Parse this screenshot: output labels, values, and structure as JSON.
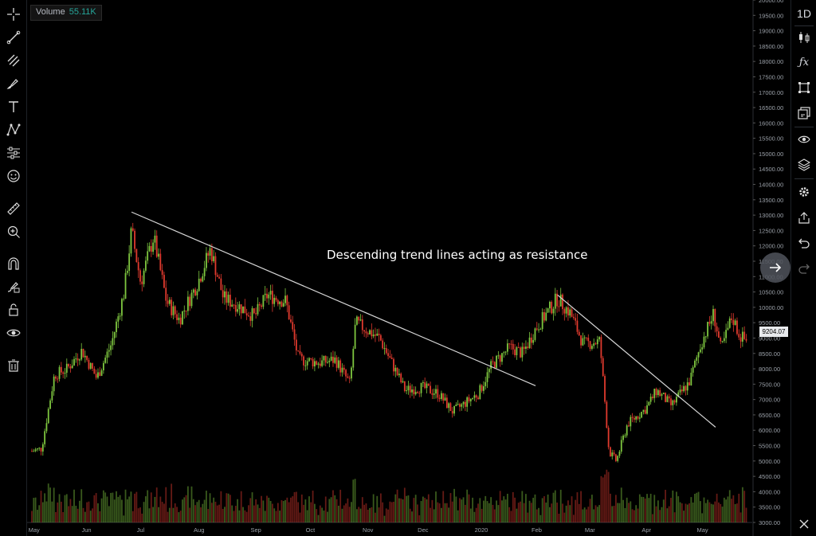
{
  "indicator": {
    "label": "Volume",
    "value": "55.11K"
  },
  "annotation": "Descending trend lines acting as resistance",
  "current_price": "9204.07",
  "right_toolbar": {
    "interval": "1D"
  },
  "left_tools": [
    "crosshair-icon",
    "trendline-icon",
    "pitchfork-icon",
    "brush-icon",
    "text-icon",
    "pattern-icon",
    "prediction-icon",
    "emoji-icon",
    "ruler-icon",
    "zoom-in-icon",
    "magnet-icon",
    "lock-drawing-icon",
    "unlock-icon",
    "eye-icon",
    "trash-icon"
  ],
  "right_tools": [
    "candles-icon",
    "fx-icon",
    "object-tree-icon",
    "watchlist-icon",
    "hide-icon",
    "layers-icon",
    "settings-icon",
    "share-icon",
    "undo-icon",
    "redo-icon"
  ],
  "colors": {
    "up": "#7ec63f",
    "down": "#e03a2e",
    "trendline": "#d6d6d6",
    "background": "#000000"
  },
  "chart_data": {
    "type": "candlestick",
    "title": "",
    "ylim": [
      3000,
      20000
    ],
    "y_ticks": [
      "20000.00",
      "19500.00",
      "19000.00",
      "18500.00",
      "18000.00",
      "17500.00",
      "17000.00",
      "16500.00",
      "16000.00",
      "15500.00",
      "15000.00",
      "14500.00",
      "14000.00",
      "13500.00",
      "13000.00",
      "12500.00",
      "12000.00",
      "11500.00",
      "11000.00",
      "10500.00",
      "10000.00",
      "9500.00",
      "9000.00",
      "8500.00",
      "8000.00",
      "7500.00",
      "7000.00",
      "6500.00",
      "6000.00",
      "5500.00",
      "5000.00",
      "4500.00",
      "4000.00",
      "3500.00",
      "3000.00"
    ],
    "x_ticks": [
      "May",
      "Jun",
      "Jul",
      "Aug",
      "Sep",
      "Oct",
      "Nov",
      "Dec",
      "2020",
      "Feb",
      "Mar",
      "Apr",
      "May"
    ],
    "price_path": [
      [
        "2019-05-01",
        5300
      ],
      [
        "2019-05-08",
        5400
      ],
      [
        "2019-05-15",
        7800
      ],
      [
        "2019-05-22",
        8000
      ],
      [
        "2019-05-30",
        8600
      ],
      [
        "2019-06-07",
        7700
      ],
      [
        "2019-06-15",
        8800
      ],
      [
        "2019-06-22",
        10500
      ],
      [
        "2019-06-26",
        12500
      ],
      [
        "2019-07-01",
        10800
      ],
      [
        "2019-07-08",
        12300
      ],
      [
        "2019-07-15",
        10200
      ],
      [
        "2019-07-22",
        9600
      ],
      [
        "2019-08-01",
        10800
      ],
      [
        "2019-08-08",
        11900
      ],
      [
        "2019-08-15",
        10300
      ],
      [
        "2019-08-22",
        10100
      ],
      [
        "2019-09-01",
        9700
      ],
      [
        "2019-09-08",
        10400
      ],
      [
        "2019-09-18",
        10200
      ],
      [
        "2019-09-25",
        8300
      ],
      [
        "2019-10-07",
        8200
      ],
      [
        "2019-10-15",
        8300
      ],
      [
        "2019-10-23",
        7500
      ],
      [
        "2019-10-26",
        9500
      ],
      [
        "2019-11-08",
        9000
      ],
      [
        "2019-11-22",
        7300
      ],
      [
        "2019-12-01",
        7400
      ],
      [
        "2019-12-10",
        7200
      ],
      [
        "2019-12-18",
        6600
      ],
      [
        "2020-01-01",
        7200
      ],
      [
        "2020-01-08",
        8100
      ],
      [
        "2020-01-18",
        8700
      ],
      [
        "2020-01-25",
        8500
      ],
      [
        "2020-02-01",
        9300
      ],
      [
        "2020-02-13",
        10300
      ],
      [
        "2020-02-20",
        9800
      ],
      [
        "2020-02-27",
        8800
      ],
      [
        "2020-03-07",
        8900
      ],
      [
        "2020-03-12",
        5300
      ],
      [
        "2020-03-16",
        5000
      ],
      [
        "2020-03-22",
        6200
      ],
      [
        "2020-04-01",
        6700
      ],
      [
        "2020-04-07",
        7300
      ],
      [
        "2020-04-15",
        6800
      ],
      [
        "2020-04-25",
        7600
      ],
      [
        "2020-05-01",
        8800
      ],
      [
        "2020-05-08",
        9800
      ],
      [
        "2020-05-12",
        8600
      ],
      [
        "2020-05-18",
        9700
      ],
      [
        "2020-05-22",
        9100
      ],
      [
        "2020-05-26",
        8900
      ]
    ],
    "trendlines": [
      {
        "from": [
          "2019-06-26",
          13100
        ],
        "to": [
          "2020-02-01",
          7450
        ]
      },
      {
        "from": [
          "2020-02-13",
          10400
        ],
        "to": [
          "2020-05-09",
          6100
        ]
      }
    ]
  }
}
